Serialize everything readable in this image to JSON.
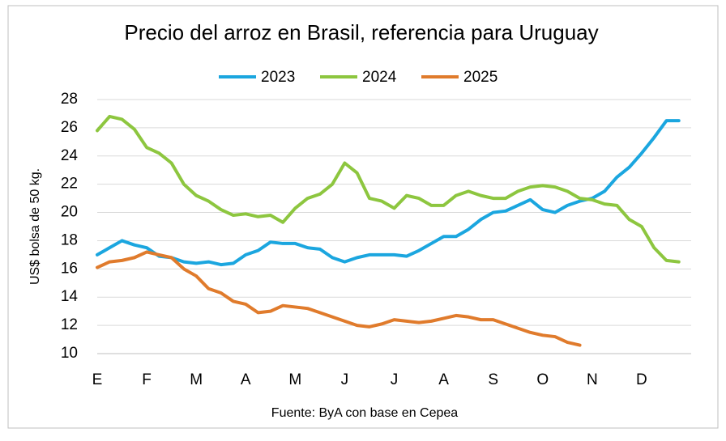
{
  "chart_data": {
    "type": "line",
    "title": "Precio del arroz en Brasil, referencia para Uruguay",
    "y_label": "US$ bolsa de 50 kg.",
    "source": "Fuente: ByA con base en Cepea",
    "categories": [
      "E",
      null,
      null,
      null,
      "F",
      null,
      null,
      null,
      "M",
      null,
      null,
      null,
      "A",
      null,
      null,
      null,
      "M",
      null,
      null,
      null,
      "J",
      null,
      null,
      null,
      "J",
      null,
      null,
      null,
      "A",
      null,
      null,
      null,
      "S",
      null,
      null,
      null,
      "O",
      null,
      null,
      null,
      "N",
      null,
      null,
      null,
      "D",
      null,
      null,
      null
    ],
    "series": [
      {
        "name": "2023",
        "color": "#1ba6df",
        "values": [
          17.0,
          17.5,
          18.0,
          17.7,
          17.5,
          16.9,
          16.8,
          16.5,
          16.4,
          16.5,
          16.3,
          16.4,
          17.0,
          17.3,
          17.9,
          17.8,
          17.8,
          17.5,
          17.4,
          16.8,
          16.5,
          16.8,
          17.0,
          17.0,
          17.0,
          16.9,
          17.3,
          17.8,
          18.3,
          18.3,
          18.8,
          19.5,
          20.0,
          20.1,
          20.5,
          20.9,
          20.2,
          20.0,
          20.5,
          20.8,
          21.0,
          21.5,
          22.5,
          23.2,
          24.2,
          25.3,
          26.5,
          26.5
        ]
      },
      {
        "name": "2024",
        "color": "#8dc63f",
        "values": [
          25.8,
          26.8,
          26.6,
          25.9,
          24.6,
          24.2,
          23.5,
          22.0,
          21.2,
          20.8,
          20.2,
          19.8,
          19.9,
          19.7,
          19.8,
          19.3,
          20.3,
          21.0,
          21.3,
          22.0,
          23.5,
          22.8,
          21.0,
          20.8,
          20.3,
          21.2,
          21.0,
          20.5,
          20.5,
          21.2,
          21.5,
          21.2,
          21.0,
          21.0,
          21.5,
          21.8,
          21.9,
          21.8,
          21.5,
          21.0,
          20.9,
          20.6,
          20.5,
          19.5,
          19.0,
          17.5,
          16.6,
          16.5
        ]
      },
      {
        "name": "2025",
        "color": "#e07b2c",
        "values": [
          16.1,
          16.5,
          16.6,
          16.8,
          17.2,
          17.0,
          16.8,
          16.0,
          15.5,
          14.6,
          14.3,
          13.7,
          13.5,
          12.9,
          13.0,
          13.4,
          13.3,
          13.2,
          12.9,
          12.6,
          12.3,
          12.0,
          11.9,
          12.1,
          12.4,
          12.3,
          12.2,
          12.3,
          12.5,
          12.7,
          12.6,
          12.4,
          12.4,
          12.1,
          11.8,
          11.5,
          11.3,
          11.2,
          10.8,
          10.6,
          null,
          null,
          null,
          null,
          null,
          null,
          null,
          null
        ]
      }
    ],
    "ylim": [
      10,
      28
    ],
    "yticks": [
      10,
      12,
      14,
      16,
      18,
      20,
      22,
      24,
      26,
      28
    ],
    "grid": true
  }
}
